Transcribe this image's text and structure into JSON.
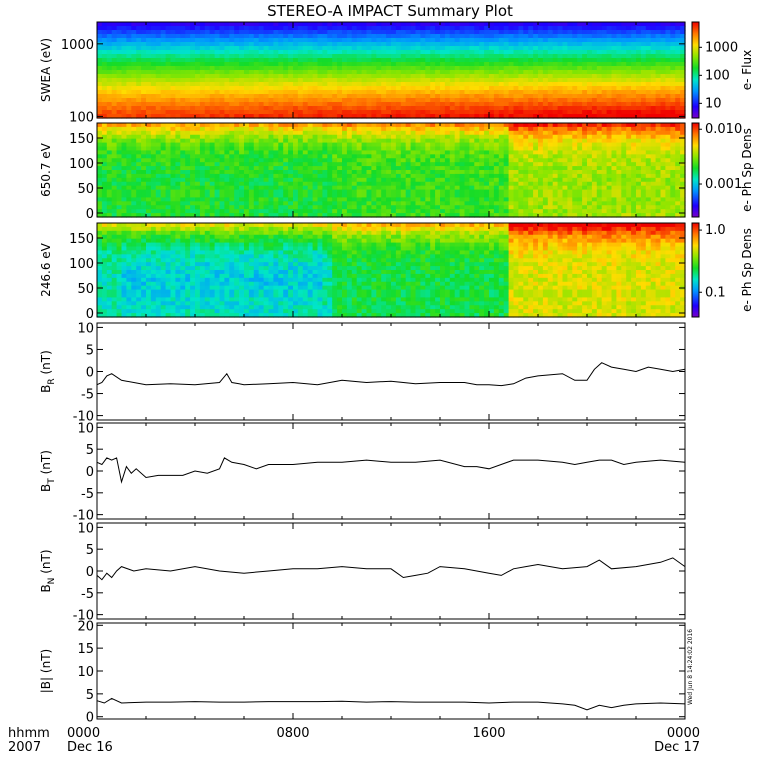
{
  "title": "STEREO-A IMPACT Summary Plot",
  "time_axis": {
    "type": "time",
    "row1_label": "hhmm",
    "row2_label": "2007",
    "ticks": [
      {
        "hour": 0,
        "label": "0000",
        "date": "Dec 16"
      },
      {
        "hour": 8,
        "label": "0800",
        "date": ""
      },
      {
        "hour": 16,
        "label": "1600",
        "date": ""
      },
      {
        "hour": 24,
        "label": "0000",
        "date": "Dec 17"
      }
    ],
    "xlim": [
      0,
      24
    ]
  },
  "side_stamp": "Wed Jun 8 14:24:02 2016",
  "chart_data": [
    {
      "type": "heatmap",
      "ylabel": "SWEA (eV)",
      "yscale": "log",
      "ylim": [
        95,
        2000
      ],
      "yticks": [
        {
          "v": 100,
          "label": "100"
        },
        {
          "v": 1000,
          "label": "1000"
        }
      ],
      "colorbar": {
        "label": "e- Flux",
        "scale": "log",
        "range": [
          3,
          8000
        ],
        "ticks": [
          {
            "v": 10,
            "label": "10"
          },
          {
            "v": 100,
            "label": "100"
          },
          {
            "v": 1000,
            "label": "1000"
          }
        ]
      }
    },
    {
      "type": "heatmap",
      "ylabel": "650.7 eV",
      "yscale": "linear",
      "ylim": [
        -8,
        180
      ],
      "yticks": [
        {
          "v": 0,
          "label": "0"
        },
        {
          "v": 50,
          "label": "50"
        },
        {
          "v": 100,
          "label": "100"
        },
        {
          "v": 150,
          "label": "150"
        }
      ],
      "colorbar": {
        "label": "e- Ph Sp Dens",
        "scale": "log",
        "range": [
          0.00025,
          0.013
        ],
        "ticks": [
          {
            "v": 0.001,
            "label": "0.001"
          },
          {
            "v": 0.01,
            "label": "0.010"
          }
        ]
      }
    },
    {
      "type": "heatmap",
      "ylabel": "246.6 eV",
      "yscale": "linear",
      "ylim": [
        -8,
        180
      ],
      "yticks": [
        {
          "v": 0,
          "label": "0"
        },
        {
          "v": 50,
          "label": "50"
        },
        {
          "v": 100,
          "label": "100"
        },
        {
          "v": 150,
          "label": "150"
        }
      ],
      "colorbar": {
        "label": "e- Ph Sp Dens",
        "scale": "log",
        "range": [
          0.04,
          1.3
        ],
        "ticks": [
          {
            "v": 0.1,
            "label": "0.1"
          },
          {
            "v": 1.0,
            "label": "1.0"
          }
        ]
      }
    },
    {
      "type": "line",
      "ylabel": "BR (nT)",
      "ylabel_base": "B",
      "ylabel_sub": "R",
      "ylabel_unit": " (nT)",
      "ylim": [
        -11,
        11
      ],
      "yticks": [
        {
          "v": -10,
          "label": "-10"
        },
        {
          "v": -5,
          "label": "-5"
        },
        {
          "v": 0,
          "label": "0"
        },
        {
          "v": 5,
          "label": "5"
        },
        {
          "v": 10,
          "label": "10"
        }
      ],
      "series": [
        {
          "x": [
            0,
            0.2,
            0.4,
            0.6,
            1,
            1.5,
            2,
            3,
            4,
            5,
            5.3,
            5.5,
            5.8,
            6,
            7,
            8,
            9,
            10,
            11,
            12,
            13,
            14,
            15,
            15.5,
            16,
            16.5,
            17,
            17.5,
            18,
            19,
            19.5,
            20,
            20.3,
            20.6,
            21,
            21.5,
            22,
            22.5,
            23,
            23.5,
            24
          ],
          "y": [
            -3,
            -2.5,
            -1,
            -0.5,
            -2,
            -2.5,
            -3,
            -2.8,
            -3,
            -2.5,
            -0.5,
            -2.5,
            -2.8,
            -3,
            -2.8,
            -2.5,
            -3,
            -2,
            -2.5,
            -2.2,
            -2.8,
            -2.5,
            -2.5,
            -3,
            -3,
            -3.2,
            -2.8,
            -1.5,
            -1,
            -0.5,
            -2,
            -2,
            0.5,
            2,
            1,
            0.5,
            0,
            1,
            0.5,
            0,
            0.5
          ]
        }
      ]
    },
    {
      "type": "line",
      "ylabel": "BT (nT)",
      "ylabel_base": "B",
      "ylabel_sub": "T",
      "ylabel_unit": " (nT)",
      "ylim": [
        -11,
        11
      ],
      "yticks": [
        {
          "v": -10,
          "label": "-10"
        },
        {
          "v": -5,
          "label": "-5"
        },
        {
          "v": 0,
          "label": "0"
        },
        {
          "v": 5,
          "label": "5"
        },
        {
          "v": 10,
          "label": "10"
        }
      ],
      "series": [
        {
          "x": [
            0,
            0.2,
            0.4,
            0.6,
            0.8,
            1,
            1.2,
            1.4,
            1.6,
            2,
            2.5,
            3,
            3.5,
            4,
            4.5,
            5,
            5.2,
            5.5,
            6,
            6.5,
            7,
            8,
            9,
            10,
            11,
            12,
            13,
            14,
            15,
            15.5,
            16,
            17,
            18,
            19,
            19.5,
            20,
            20.5,
            21,
            21.5,
            22,
            23,
            24
          ],
          "y": [
            2,
            1.5,
            3,
            2.5,
            3,
            -2.5,
            1,
            -0.5,
            0.5,
            -1.5,
            -1,
            -1,
            -1,
            0,
            -0.5,
            0.5,
            3,
            2,
            1.5,
            0.5,
            1.5,
            1.5,
            2,
            2,
            2.5,
            2,
            2,
            2.5,
            1,
            1,
            0.5,
            2.5,
            2.5,
            2,
            1.5,
            2,
            2.5,
            2.5,
            1.5,
            2,
            2.5,
            2
          ]
        }
      ]
    },
    {
      "type": "line",
      "ylabel": "BN (nT)",
      "ylabel_base": "B",
      "ylabel_sub": "N",
      "ylabel_unit": " (nT)",
      "ylim": [
        -11,
        11
      ],
      "yticks": [
        {
          "v": -10,
          "label": "-10"
        },
        {
          "v": -5,
          "label": "-5"
        },
        {
          "v": 0,
          "label": "0"
        },
        {
          "v": 5,
          "label": "5"
        },
        {
          "v": 10,
          "label": "10"
        }
      ],
      "series": [
        {
          "x": [
            0,
            0.2,
            0.4,
            0.6,
            0.8,
            1,
            1.5,
            2,
            3,
            4,
            5,
            6,
            7,
            8,
            9,
            10,
            11,
            12,
            12.5,
            13,
            13.5,
            14,
            15,
            16,
            16.5,
            17,
            17.5,
            18,
            19,
            20,
            20.5,
            21,
            22,
            23,
            23.5,
            24
          ],
          "y": [
            -1,
            -2,
            -0.5,
            -1.5,
            0,
            1,
            0,
            0.5,
            0,
            1,
            0,
            -0.5,
            0,
            0.5,
            0.5,
            1,
            0.5,
            0.5,
            -1.5,
            -1,
            -0.5,
            1,
            0.5,
            -0.5,
            -1,
            0.5,
            1,
            1.5,
            0.5,
            1,
            2.5,
            0.5,
            1,
            2,
            3,
            1
          ]
        }
      ]
    },
    {
      "type": "line",
      "ylabel": "|B| (nT)",
      "ylabel_base": "|B|",
      "ylabel_sub": "",
      "ylabel_unit": " (nT)",
      "ylim": [
        -0.5,
        20.5
      ],
      "yticks": [
        {
          "v": 0,
          "label": "0"
        },
        {
          "v": 5,
          "label": "5"
        },
        {
          "v": 10,
          "label": "10"
        },
        {
          "v": 15,
          "label": "15"
        },
        {
          "v": 20,
          "label": "20"
        }
      ],
      "series": [
        {
          "x": [
            0,
            0.3,
            0.6,
            1,
            2,
            3,
            4,
            5,
            6,
            7,
            8,
            9,
            10,
            11,
            12,
            13,
            14,
            15,
            16,
            17,
            18,
            19,
            19.5,
            20,
            20.5,
            21,
            21.5,
            22,
            23,
            24
          ],
          "y": [
            3.5,
            3,
            4,
            3,
            3.2,
            3.2,
            3.3,
            3.2,
            3.2,
            3.3,
            3.3,
            3.3,
            3.4,
            3.2,
            3.3,
            3.2,
            3.2,
            3.2,
            3,
            3.2,
            3.2,
            2.8,
            2.5,
            1.5,
            2.5,
            2,
            2.5,
            2.8,
            3,
            2.8
          ]
        }
      ]
    }
  ]
}
